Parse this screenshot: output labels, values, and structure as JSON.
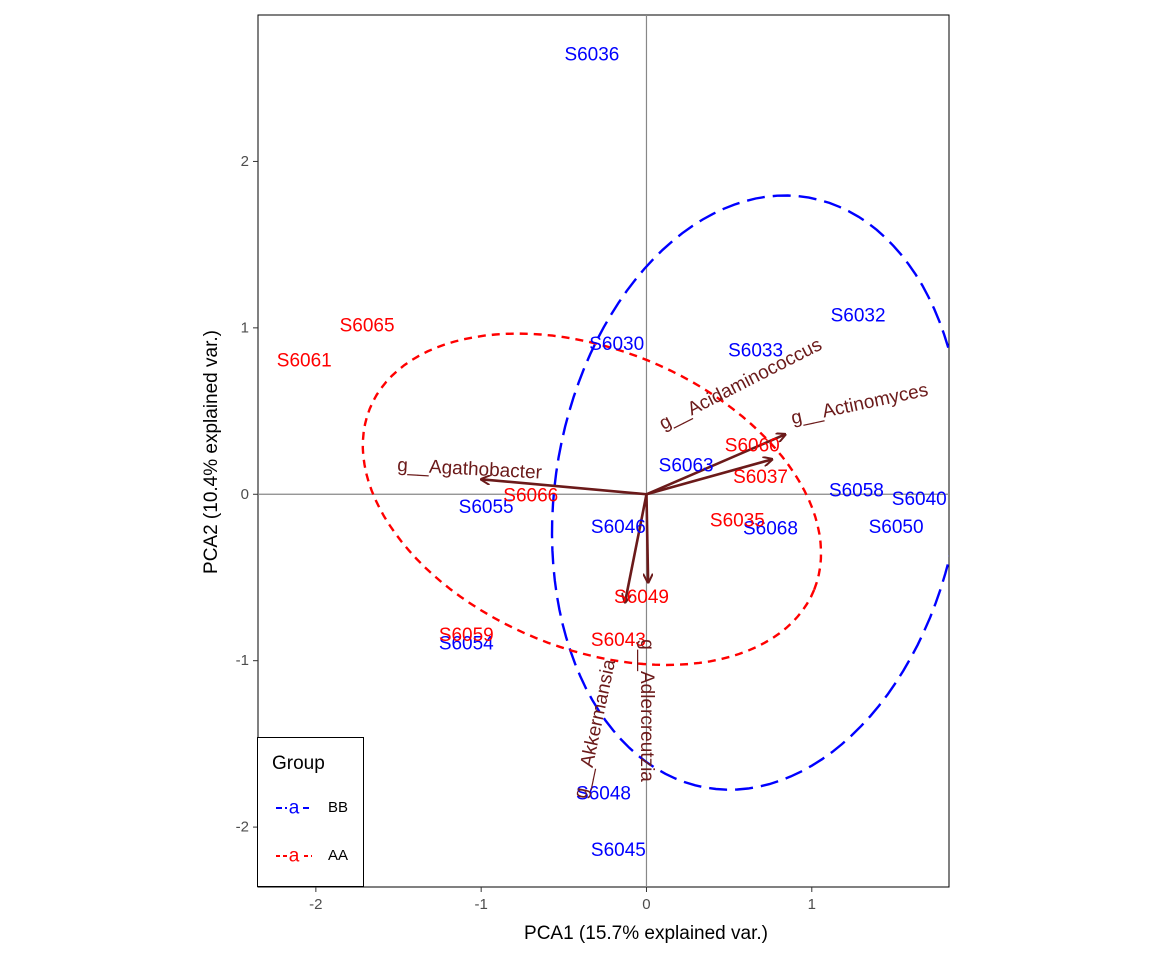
{
  "chart_data": {
    "type": "scatter",
    "subtype": "pca-biplot",
    "xlabel": "PCA1 (15.7% explained var.)",
    "ylabel": "PCA2 (10.4% explained var.)",
    "xlim": [
      -2.35,
      1.83
    ],
    "ylim": [
      -2.36,
      2.88
    ],
    "x_ticks": [
      -2,
      -1,
      0,
      1
    ],
    "y_ticks": [
      -2,
      -1,
      0,
      1,
      2
    ],
    "grid": false,
    "reference_lines": {
      "x": 0,
      "y": 0
    },
    "legend": {
      "title": "Group",
      "position": "bottom-left",
      "entries": [
        {
          "label": "BB",
          "color": "#0000ff",
          "key_glyph": "a"
        },
        {
          "label": "AA",
          "color": "#ff0000",
          "key_glyph": "a"
        }
      ]
    },
    "colors": {
      "BB": "#0000ff",
      "AA": "#ff0000",
      "loadings": "#6b1a1a",
      "reference": "#888888"
    },
    "series": [
      {
        "name": "BB",
        "points": [
          {
            "label": "S6036",
            "x": -0.33,
            "y": 2.64
          },
          {
            "label": "S6030",
            "x": -0.18,
            "y": 0.9
          },
          {
            "label": "S6033",
            "x": 0.66,
            "y": 0.86
          },
          {
            "label": "S6032",
            "x": 1.28,
            "y": 1.07
          },
          {
            "label": "S6063",
            "x": 0.24,
            "y": 0.17
          },
          {
            "label": "S6058",
            "x": 1.27,
            "y": 0.02
          },
          {
            "label": "S6040",
            "x": 1.65,
            "y": -0.03
          },
          {
            "label": "S6050",
            "x": 1.51,
            "y": -0.2
          },
          {
            "label": "S6055",
            "x": -0.97,
            "y": -0.08
          },
          {
            "label": "S6046",
            "x": -0.17,
            "y": -0.2
          },
          {
            "label": "S6068",
            "x": 0.75,
            "y": -0.21
          },
          {
            "label": "S6054",
            "x": -1.09,
            "y": -0.9
          },
          {
            "label": "S6048",
            "x": -0.26,
            "y": -1.8
          },
          {
            "label": "S6045",
            "x": -0.17,
            "y": -2.14
          }
        ],
        "ellipse": {
          "center": [
            0.67,
            0.01
          ],
          "rx": 1.22,
          "ry": 1.8,
          "angle_deg": -10
        }
      },
      {
        "name": "AA",
        "points": [
          {
            "label": "S6065",
            "x": -1.69,
            "y": 1.01
          },
          {
            "label": "S6061",
            "x": -2.07,
            "y": 0.8
          },
          {
            "label": "S6060",
            "x": 0.64,
            "y": 0.29
          },
          {
            "label": "S6037",
            "x": 0.69,
            "y": 0.1
          },
          {
            "label": "S6066",
            "x": -0.7,
            "y": -0.01
          },
          {
            "label": "S6035",
            "x": 0.55,
            "y": -0.16
          },
          {
            "label": "S6049",
            "x": -0.03,
            "y": -0.62
          },
          {
            "label": "S6059",
            "x": -1.09,
            "y": -0.85
          },
          {
            "label": "S6043",
            "x": -0.17,
            "y": -0.88
          }
        ],
        "ellipse": {
          "center": [
            -0.33,
            -0.03
          ],
          "rx": 1.45,
          "ry": 0.9,
          "angle_deg": -22
        }
      }
    ],
    "loadings": [
      {
        "label": "g__Agathobacter",
        "x": -1.0,
        "y": 0.09,
        "label_x": -1.07,
        "label_y": 0.15,
        "label_angle": 3
      },
      {
        "label": "g__Acidaminococcus",
        "x": 0.84,
        "y": 0.36,
        "label_x": 0.57,
        "label_y": 0.66,
        "label_angle": -27
      },
      {
        "label": "g__Actinomyces",
        "x": 0.76,
        "y": 0.21,
        "label_x": 1.29,
        "label_y": 0.54,
        "label_angle": -12
      },
      {
        "label": "g__Akkermansia",
        "x": -0.13,
        "y": -0.65,
        "label_x": -0.31,
        "label_y": -1.41,
        "label_angle": -78
      },
      {
        "label": "g__Adlercreutzia",
        "x": 0.01,
        "y": -0.53,
        "label_x": 0.0,
        "label_y": -1.3,
        "label_angle": 90
      }
    ]
  }
}
